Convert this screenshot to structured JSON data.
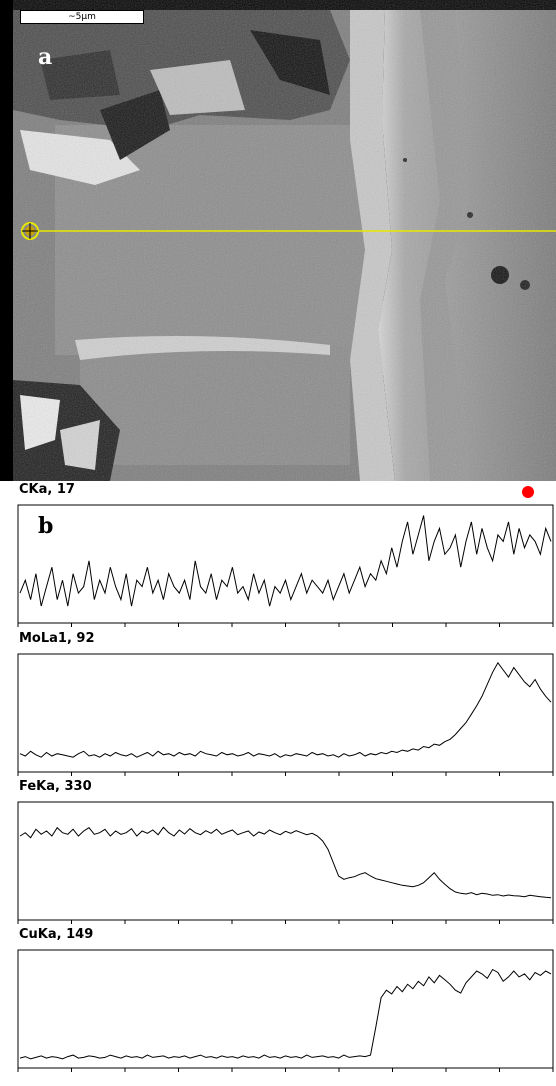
{
  "figure": {
    "panel_a_label": "a",
    "panel_b_label": "b",
    "scale_bar_label": "~5µm",
    "line_color": "#e8e800",
    "trace_color": "#000000",
    "marker_color": "#ff0000"
  },
  "chart_data": {
    "type": "line",
    "x_range": [
      0,
      100
    ],
    "series": [
      {
        "name": "CKa, 17",
        "ylim": [
          0,
          17
        ],
        "values": [
          4,
          6,
          3,
          7,
          2,
          5,
          8,
          3,
          6,
          2,
          7,
          4,
          5,
          9,
          3,
          6,
          4,
          8,
          5,
          3,
          7,
          2,
          6,
          5,
          8,
          4,
          6,
          3,
          7,
          5,
          4,
          6,
          3,
          9,
          5,
          4,
          7,
          3,
          6,
          5,
          8,
          4,
          5,
          3,
          7,
          4,
          6,
          2,
          5,
          4,
          6,
          3,
          5,
          7,
          4,
          6,
          5,
          4,
          6,
          3,
          5,
          7,
          4,
          6,
          8,
          5,
          7,
          6,
          9,
          7,
          11,
          8,
          12,
          15,
          10,
          13,
          16,
          9,
          12,
          14,
          10,
          11,
          13,
          8,
          12,
          15,
          10,
          14,
          11,
          9,
          13,
          12,
          15,
          10,
          14,
          11,
          13,
          12,
          10,
          14,
          12
        ]
      },
      {
        "name": "MoLa1, 92",
        "ylim": [
          0,
          92
        ],
        "values": [
          12,
          10,
          14,
          11,
          9,
          13,
          10,
          12,
          11,
          10,
          9,
          12,
          14,
          10,
          11,
          9,
          12,
          10,
          13,
          11,
          10,
          12,
          9,
          11,
          13,
          10,
          14,
          11,
          12,
          10,
          13,
          11,
          12,
          10,
          14,
          12,
          11,
          10,
          13,
          11,
          12,
          10,
          11,
          13,
          10,
          12,
          11,
          10,
          12,
          9,
          11,
          10,
          12,
          11,
          10,
          13,
          11,
          12,
          10,
          11,
          9,
          12,
          10,
          11,
          13,
          10,
          12,
          11,
          13,
          12,
          14,
          13,
          15,
          14,
          16,
          15,
          18,
          17,
          20,
          19,
          22,
          24,
          28,
          33,
          38,
          45,
          52,
          60,
          70,
          80,
          88,
          82,
          76,
          84,
          78,
          72,
          68,
          74,
          66,
          60,
          55
        ]
      },
      {
        "name": "FeKa, 330",
        "ylim": [
          0,
          330
        ],
        "values": [
          240,
          250,
          235,
          260,
          245,
          255,
          240,
          265,
          250,
          245,
          260,
          240,
          255,
          265,
          245,
          250,
          260,
          240,
          255,
          245,
          250,
          262,
          240,
          255,
          248,
          258,
          244,
          266,
          250,
          240,
          258,
          246,
          262,
          250,
          244,
          256,
          248,
          260,
          245,
          252,
          258,
          244,
          250,
          255,
          240,
          252,
          246,
          258,
          250,
          244,
          254,
          248,
          256,
          250,
          244,
          248,
          240,
          225,
          200,
          160,
          120,
          110,
          115,
          118,
          125,
          130,
          120,
          112,
          108,
          104,
          100,
          96,
          92,
          90,
          88,
          92,
          100,
          115,
          130,
          110,
          95,
          82,
          72,
          68,
          66,
          70,
          64,
          68,
          66,
          62,
          64,
          60,
          63,
          61,
          60,
          58,
          62,
          60,
          58,
          56,
          55
        ]
      },
      {
        "name": "CuKa, 149",
        "ylim": [
          0,
          149
        ],
        "values": [
          8,
          10,
          7,
          9,
          11,
          8,
          10,
          9,
          7,
          10,
          12,
          8,
          9,
          11,
          10,
          8,
          9,
          12,
          10,
          8,
          11,
          9,
          10,
          8,
          12,
          9,
          10,
          11,
          8,
          10,
          9,
          11,
          8,
          10,
          12,
          9,
          10,
          8,
          11,
          9,
          10,
          8,
          11,
          9,
          10,
          8,
          12,
          9,
          10,
          8,
          11,
          9,
          10,
          8,
          12,
          9,
          10,
          11,
          9,
          10,
          8,
          12,
          9,
          10,
          11,
          10,
          12,
          50,
          90,
          100,
          95,
          105,
          98,
          108,
          102,
          112,
          106,
          118,
          110,
          120,
          114,
          108,
          100,
          96,
          110,
          118,
          126,
          122,
          116,
          128,
          124,
          112,
          118,
          126,
          118,
          122,
          114,
          124,
          120,
          126,
          122
        ]
      }
    ]
  }
}
